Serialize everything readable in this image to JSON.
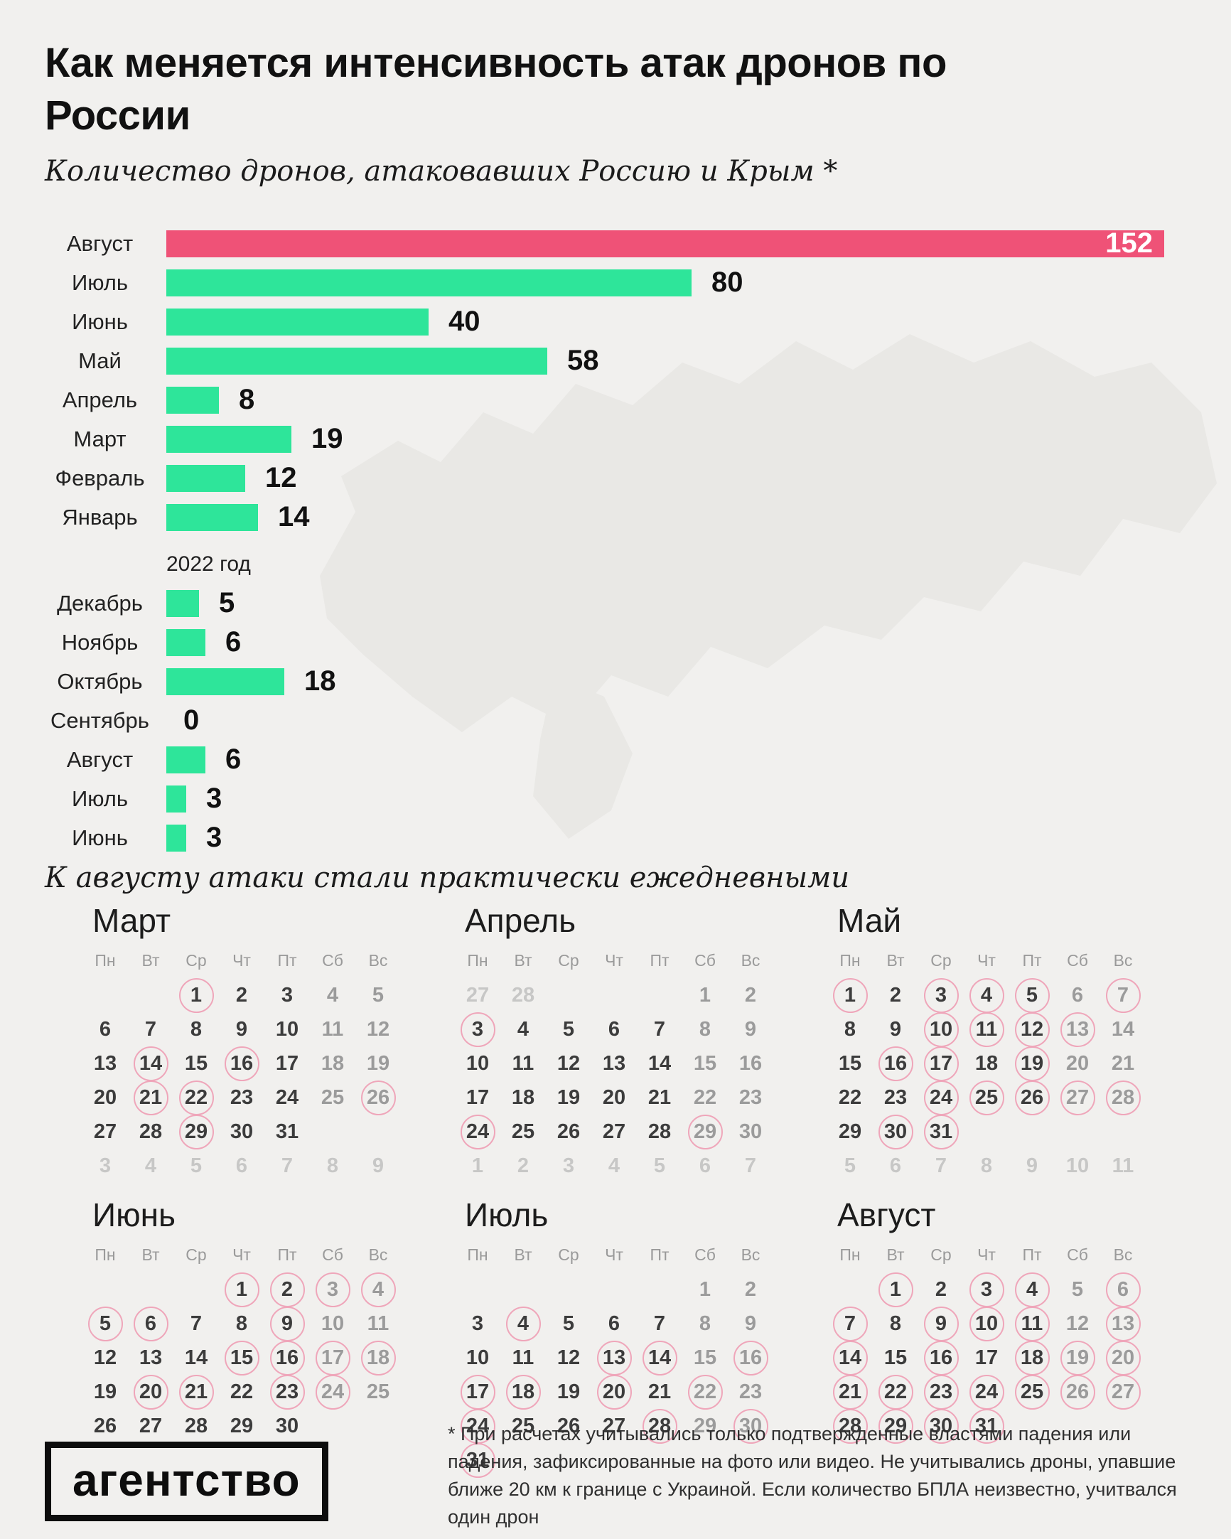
{
  "header": {
    "title": "Как меняется интенсивность атак дронов по России",
    "subtitle": "Количество дронов, атаковавших Россию и Крым *"
  },
  "chart_data": {
    "type": "bar",
    "orientation": "horizontal",
    "title": "Как меняется интенсивность атак дронов по России",
    "subtitle": "Количество дронов, атаковавших Россию и Крым *",
    "xmax": 152,
    "bar_color": "#2EE59A",
    "highlight_color": "#EF5277",
    "groups": [
      {
        "highlight_index": 0,
        "categories": [
          "Август",
          "Июль",
          "Июнь",
          "Май",
          "Апрель",
          "Март",
          "Февраль",
          "Январь"
        ],
        "values": [
          152,
          80,
          40,
          58,
          8,
          19,
          12,
          14
        ]
      },
      {
        "year_label": "2022 год",
        "categories": [
          "Декабрь",
          "Ноябрь",
          "Октябрь",
          "Сентябрь",
          "Август",
          "Июль",
          "Июнь"
        ],
        "values": [
          5,
          6,
          18,
          0,
          6,
          3,
          3
        ]
      }
    ]
  },
  "section_note": "К августу атаки стали практически ежедневными",
  "calendars": {
    "weekdays": [
      "Пн",
      "Вт",
      "Ср",
      "Чт",
      "Пт",
      "Сб",
      "Вс"
    ],
    "circle_color": "#EFA6BA",
    "months": [
      {
        "title": "Март",
        "weeks": [
          [
            "",
            "",
            "1c",
            "2",
            "3",
            "4w",
            "5w"
          ],
          [
            "6",
            "7",
            "8",
            "9",
            "10",
            "11w",
            "12w"
          ],
          [
            "13",
            "14c",
            "15",
            "16c",
            "17",
            "18w",
            "19w"
          ],
          [
            "20",
            "21c",
            "22c",
            "23",
            "24",
            "25w",
            "26wc"
          ],
          [
            "27",
            "28",
            "29c",
            "30",
            "31",
            "",
            ""
          ],
          [
            "3o",
            "4o",
            "5o",
            "6o",
            "7o",
            "8o",
            "9o"
          ]
        ]
      },
      {
        "title": "Апрель",
        "weeks": [
          [
            "27o",
            "28o",
            "",
            "",
            "",
            "1w",
            "2w"
          ],
          [
            "3c",
            "4",
            "5",
            "6",
            "7",
            "8w",
            "9w"
          ],
          [
            "10",
            "11",
            "12",
            "13",
            "14",
            "15w",
            "16w"
          ],
          [
            "17",
            "18",
            "19",
            "20",
            "21",
            "22w",
            "23w"
          ],
          [
            "24c",
            "25",
            "26",
            "27",
            "28",
            "29wc",
            "30w"
          ],
          [
            "1o",
            "2o",
            "3o",
            "4o",
            "5o",
            "6o",
            "7o"
          ]
        ]
      },
      {
        "title": "Май",
        "weeks": [
          [
            "1c",
            "2",
            "3c",
            "4c",
            "5c",
            "6w",
            "7wc"
          ],
          [
            "8",
            "9",
            "10c",
            "11c",
            "12c",
            "13wc",
            "14w"
          ],
          [
            "15",
            "16c",
            "17c",
            "18",
            "19c",
            "20w",
            "21w"
          ],
          [
            "22",
            "23",
            "24c",
            "25c",
            "26c",
            "27wc",
            "28wc"
          ],
          [
            "29",
            "30c",
            "31c",
            "",
            "",
            "",
            ""
          ],
          [
            "5o",
            "6o",
            "7o",
            "8o",
            "9o",
            "10o",
            "11o"
          ]
        ]
      },
      {
        "title": "Июнь",
        "weeks": [
          [
            "",
            "",
            "",
            "1c",
            "2c",
            "3wc",
            "4wc"
          ],
          [
            "5c",
            "6c",
            "7",
            "8",
            "9c",
            "10w",
            "11w"
          ],
          [
            "12",
            "13",
            "14",
            "15c",
            "16c",
            "17wc",
            "18wc"
          ],
          [
            "19",
            "20c",
            "21c",
            "22",
            "23c",
            "24wc",
            "25w"
          ],
          [
            "26",
            "27",
            "28",
            "29",
            "30",
            "",
            ""
          ]
        ]
      },
      {
        "title": "Июль",
        "weeks": [
          [
            "",
            "",
            "",
            "",
            "",
            "1w",
            "2w"
          ],
          [
            "3",
            "4c",
            "5",
            "6",
            "7",
            "8w",
            "9w"
          ],
          [
            "10",
            "11",
            "12",
            "13c",
            "14c",
            "15w",
            "16wc"
          ],
          [
            "17c",
            "18c",
            "19",
            "20c",
            "21",
            "22wc",
            "23w"
          ],
          [
            "24c",
            "25",
            "26",
            "27",
            "28c",
            "29w",
            "30wc"
          ],
          [
            "31c",
            "",
            "",
            "",
            "",
            "",
            ""
          ]
        ]
      },
      {
        "title": "Август",
        "weeks": [
          [
            "",
            "1c",
            "2",
            "3c",
            "4c",
            "5w",
            "6wc"
          ],
          [
            "7c",
            "8",
            "9c",
            "10c",
            "11c",
            "12w",
            "13wc"
          ],
          [
            "14c",
            "15",
            "16c",
            "17",
            "18c",
            "19wc",
            "20wc"
          ],
          [
            "21c",
            "22c",
            "23c",
            "24c",
            "25c",
            "26wc",
            "27wc"
          ],
          [
            "28c",
            "29c",
            "30c",
            "31c",
            "",
            "",
            ""
          ]
        ]
      }
    ]
  },
  "footer": {
    "logo_text": "агентство",
    "footnote": "* При расчетах учитывались только подтвержденные властями падения или падения, зафиксированные на фото или видео. Не учитывались дроны, упавшие ближе 20 км к границе с Украиной. Если количество БПЛА неизвестно, учитвался один дрон"
  }
}
